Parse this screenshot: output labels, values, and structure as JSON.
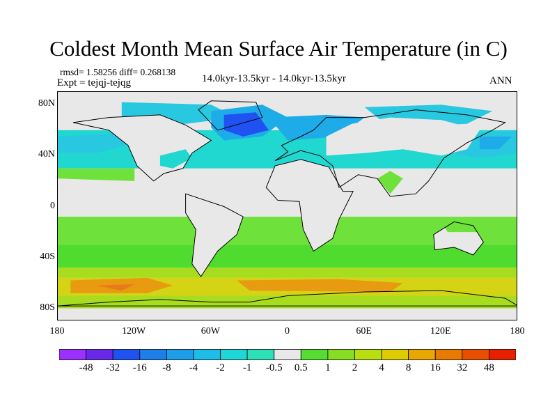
{
  "title": "Coldest Month Mean Surface Air Temperature (in C)",
  "stats": "rmsd= 1.58256 diff= 0.268138",
  "expt": "Expt = tejqj-tejqg",
  "subtitle": "14.0kyr-13.5kyr - 14.0kyr-13.5kyr",
  "season": "ANN",
  "axes": {
    "x_ticks": [
      {
        "value": -180,
        "label": "180"
      },
      {
        "value": -120,
        "label": "120W"
      },
      {
        "value": -60,
        "label": "60W"
      },
      {
        "value": 0,
        "label": "0"
      },
      {
        "value": 60,
        "label": "60E"
      },
      {
        "value": 120,
        "label": "120E"
      },
      {
        "value": 180,
        "label": "180"
      }
    ],
    "y_ticks": [
      {
        "value": 80,
        "label": "80N"
      },
      {
        "value": 40,
        "label": "40N"
      },
      {
        "value": 0,
        "label": "0"
      },
      {
        "value": -40,
        "label": "40S"
      },
      {
        "value": -80,
        "label": "80S"
      }
    ],
    "lon_range": [
      -180,
      180
    ],
    "lat_range": [
      -90,
      90
    ]
  },
  "colorbar": {
    "labels": [
      "-48",
      "-32",
      "-16",
      "-8",
      "-4",
      "-2",
      "-1",
      "-0.5",
      "0.5",
      "1",
      "2",
      "4",
      "8",
      "16",
      "32",
      "48"
    ],
    "colors": [
      "#9b30ff",
      "#6a28e8",
      "#1f52f0",
      "#1e7fe8",
      "#1e9ee8",
      "#1ebde8",
      "#1ed8d8",
      "#2ee0b8",
      "#e8e8e8",
      "#55dd33",
      "#88dd22",
      "#b8dd11",
      "#ddcc00",
      "#e8a800",
      "#e87a00",
      "#e84e00",
      "#e82000"
    ]
  },
  "field_colors": {
    "neutral": "#e8e8e8",
    "very_light_green": "#6ee23a",
    "light_green": "#4fdc2f",
    "yellow_green": "#a8dc1e",
    "yellow": "#d4d415",
    "orange": "#e89a10",
    "orange_red": "#e87a1c",
    "cyan": "#20d8d0",
    "teal": "#28c8e0",
    "light_blue": "#1eace8",
    "blue": "#1f7fe8",
    "deep_blue": "#1f52f0",
    "coast": "#000000"
  }
}
